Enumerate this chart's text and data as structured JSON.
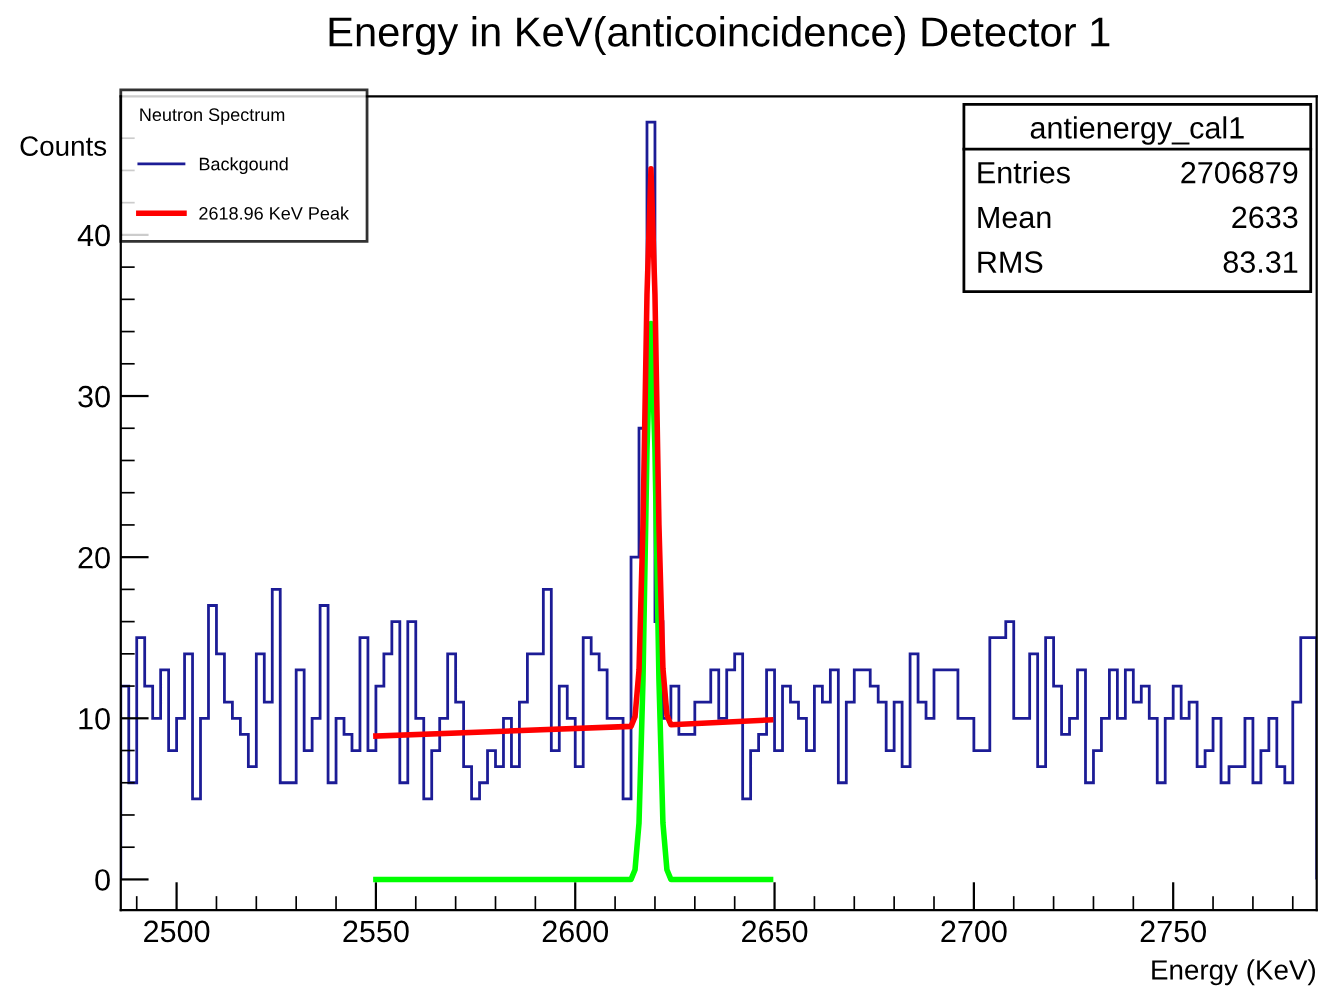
{
  "chart_data": {
    "type": "histogram",
    "title": "Energy in KeV(anticoincidence) Detector 1",
    "xlabel": "Energy (KeV)",
    "ylabel": "Counts",
    "legend_title": "Neutron Spectrum",
    "legend": "top left",
    "grid": false,
    "xlim": [
      2486,
      2786
    ],
    "ylim": [
      -1.9,
      48.6
    ],
    "xticks": [
      {
        "value": 2490,
        "label": null
      },
      2500,
      {
        "value": 2510,
        "label": null
      },
      {
        "value": 2520,
        "label": null
      },
      {
        "value": 2530,
        "label": null
      },
      {
        "value": 2540,
        "label": null
      },
      2550,
      {
        "value": 2560,
        "label": null
      },
      {
        "value": 2570,
        "label": null
      },
      {
        "value": 2580,
        "label": null
      },
      {
        "value": 2590,
        "label": null
      },
      2600,
      {
        "value": 2610,
        "label": null
      },
      {
        "value": 2620,
        "label": null
      },
      {
        "value": 2630,
        "label": null
      },
      {
        "value": 2640,
        "label": null
      },
      2650,
      {
        "value": 2660,
        "label": null
      },
      {
        "value": 2670,
        "label": null
      },
      {
        "value": 2680,
        "label": null
      },
      {
        "value": 2690,
        "label": null
      },
      2700,
      {
        "value": 2710,
        "label": null
      },
      {
        "value": 2720,
        "label": null
      },
      {
        "value": 2730,
        "label": null
      },
      {
        "value": 2740,
        "label": null
      },
      2750,
      {
        "value": 2760,
        "label": null
      },
      {
        "value": 2770,
        "label": null
      },
      {
        "value": 2780,
        "label": null
      }
    ],
    "yticks": [
      0,
      {
        "value": 2,
        "label": null
      },
      {
        "value": 4,
        "label": null
      },
      {
        "value": 6,
        "label": null
      },
      {
        "value": 8,
        "label": null
      },
      10,
      {
        "value": 12,
        "label": null
      },
      {
        "value": 14,
        "label": null
      },
      {
        "value": 16,
        "label": null
      },
      {
        "value": 18,
        "label": null
      },
      20,
      {
        "value": 22,
        "label": null
      },
      {
        "value": 24,
        "label": null
      },
      {
        "value": 26,
        "label": null
      },
      {
        "value": 28,
        "label": null
      },
      30,
      {
        "value": 32,
        "label": null
      },
      {
        "value": 34,
        "label": null
      },
      {
        "value": 36,
        "label": null
      },
      {
        "value": 38,
        "label": null
      },
      40,
      {
        "value": 42,
        "label": null
      },
      {
        "value": 44,
        "label": null
      },
      {
        "value": 46,
        "label": null
      }
    ],
    "annotations": [
      "antienergy_cal1",
      "Entries 2706879",
      "Mean 2633",
      "RMS 83.31"
    ],
    "series": [
      {
        "name": "Backgound",
        "color": "#1c1c96",
        "bins": [
          2486,
          2488,
          2490,
          2492,
          2494,
          2496,
          2498,
          2500,
          2502,
          2504,
          2506,
          2508,
          2510,
          2512,
          2514,
          2516,
          2518,
          2520,
          2522,
          2524,
          2526,
          2528,
          2530,
          2532,
          2534,
          2536,
          2538,
          2540,
          2542,
          2544,
          2546,
          2548,
          2550,
          2552,
          2554,
          2556,
          2558,
          2560,
          2562,
          2564,
          2566,
          2568,
          2570,
          2572,
          2574,
          2576,
          2578,
          2580,
          2582,
          2584,
          2586,
          2588,
          2590,
          2592,
          2594,
          2596,
          2598,
          2600,
          2602,
          2604,
          2606,
          2608,
          2610,
          2612,
          2614,
          2616,
          2618,
          2620,
          2622,
          2624,
          2626,
          2628,
          2630,
          2632,
          2634,
          2636,
          2638,
          2640,
          2642,
          2644,
          2646,
          2648,
          2650,
          2652,
          2654,
          2656,
          2658,
          2660,
          2662,
          2664,
          2666,
          2668,
          2670,
          2672,
          2674,
          2676,
          2678,
          2680,
          2682,
          2684,
          2686,
          2688,
          2690,
          2692,
          2694,
          2696,
          2698,
          2700,
          2702,
          2704,
          2706,
          2708,
          2710,
          2712,
          2714,
          2716,
          2718,
          2720,
          2722,
          2724,
          2726,
          2728,
          2730,
          2732,
          2734,
          2736,
          2738,
          2740,
          2742,
          2744,
          2746,
          2748,
          2750,
          2752,
          2754,
          2756,
          2758,
          2760,
          2762,
          2764,
          2766,
          2768,
          2770,
          2772,
          2774,
          2776,
          2778,
          2780,
          2782,
          2784,
          2786
        ],
        "values": [
          12,
          6,
          15,
          12,
          10,
          13,
          8,
          10,
          14,
          5,
          10,
          17,
          14,
          11,
          10,
          9,
          7,
          14,
          11,
          18,
          6,
          6,
          13,
          8,
          10,
          17,
          6,
          10,
          9,
          8,
          15,
          8,
          12,
          14,
          16,
          6,
          16,
          10,
          5,
          8,
          10,
          14,
          11,
          7,
          5,
          6,
          8,
          7,
          10,
          7,
          11,
          14,
          14,
          18,
          8,
          12,
          10,
          7,
          15,
          14,
          13,
          10,
          10,
          5,
          20,
          28,
          47,
          16,
          10,
          12,
          9,
          9,
          11,
          11,
          13,
          10,
          13,
          14,
          5,
          8,
          9,
          13,
          8,
          12,
          11,
          10,
          8,
          12,
          11,
          13,
          6,
          11,
          13,
          13,
          12,
          11,
          8,
          11,
          7,
          14,
          11,
          10,
          13,
          13,
          13,
          10,
          10,
          8,
          8,
          15,
          15,
          16,
          10,
          10,
          14,
          7,
          15,
          12,
          9,
          10,
          13,
          6,
          8,
          10,
          13,
          10,
          13,
          11,
          12,
          10,
          6,
          10,
          12,
          10,
          11,
          7,
          8,
          10,
          6,
          7,
          7,
          10,
          6,
          8,
          10,
          7,
          6,
          11,
          15,
          15
        ]
      },
      {
        "type": "line",
        "color": "#00ff00",
        "x": [
          2550,
          2614,
          2615,
          2616,
          2617,
          2618,
          2619,
          2620,
          2621,
          2622,
          2623,
          2624,
          2649
        ],
        "values": [
          0,
          0,
          0.6,
          3.5,
          12.4,
          26.7,
          34.5,
          26.7,
          12.4,
          3.5,
          0.6,
          0,
          0
        ]
      },
      {
        "type": "line",
        "name": "2618.96 KeV Peak",
        "color": "#ff0000",
        "x": [
          2550,
          2614,
          2615,
          2616,
          2617,
          2618,
          2619,
          2620,
          2621,
          2622,
          2623,
          2624,
          2649
        ],
        "values": [
          8.9,
          9.5,
          10.1,
          13.0,
          22.0,
          36.3,
          44.1,
          36.3,
          22.0,
          13.1,
          10.2,
          9.6,
          9.9
        ]
      }
    ]
  }
}
